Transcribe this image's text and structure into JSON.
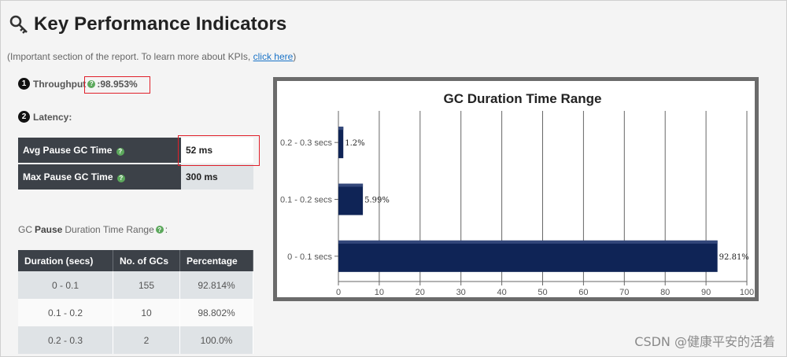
{
  "header": {
    "title": "Key Performance Indicators",
    "icon": "key-icon"
  },
  "subtitle": {
    "text": "(Important section of the report. To learn more about KPIs, ",
    "link": "click here",
    "suffix": ")"
  },
  "throughput": {
    "number": "1",
    "label": "Throughput",
    "sep": " : ",
    "value": "98.953%"
  },
  "latency": {
    "number": "2",
    "label": "Latency:"
  },
  "pause_table": [
    {
      "label": "Avg Pause GC Time",
      "value": "52 ms"
    },
    {
      "label": "Max Pause GC Time",
      "value": "300 ms"
    }
  ],
  "gc_range_label": {
    "prefix": "GC ",
    "bold": "Pause",
    "suffix": " Duration Time Range"
  },
  "duration_table": {
    "headers": [
      "Duration (secs)",
      "No. of GCs",
      "Percentage"
    ],
    "rows": [
      [
        "0 - 0.1",
        "155",
        "92.814%"
      ],
      [
        "0.1 - 0.2",
        "10",
        "98.802%"
      ],
      [
        "0.2 - 0.3",
        "2",
        "100.0%"
      ]
    ]
  },
  "chart_data": {
    "type": "bar",
    "orientation": "horizontal",
    "title": "GC Duration Time Range",
    "categories": [
      "0.2 - 0.3 secs",
      "0.1 - 0.2 secs",
      "0 - 0.1 secs"
    ],
    "values": [
      1.2,
      5.99,
      92.81
    ],
    "data_labels": [
      "1.2%",
      "5.99%",
      "92.81%"
    ],
    "xlim": [
      0,
      100
    ],
    "xticks": [
      0,
      10,
      20,
      30,
      40,
      50,
      60,
      70,
      80,
      90,
      100
    ],
    "grid": true,
    "bar_color": "#0f2456"
  },
  "watermark": "CSDN @健康平安的活着"
}
